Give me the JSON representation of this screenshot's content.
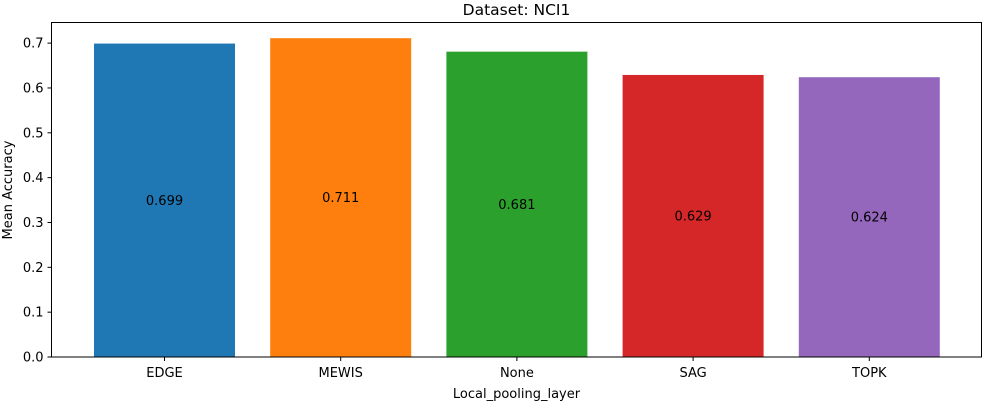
{
  "chart_data": {
    "type": "bar",
    "title": "Dataset: NCI1",
    "xlabel": "Local_pooling_layer",
    "ylabel": "Mean Accuracy",
    "categories": [
      "EDGE",
      "MEWIS",
      "None",
      "SAG",
      "TOPK"
    ],
    "values": [
      0.699,
      0.711,
      0.681,
      0.629,
      0.624
    ],
    "data_labels": [
      "0.699",
      "0.711",
      "0.681",
      "0.629",
      "0.624"
    ],
    "colors": [
      "#1f77b4",
      "#ff7f0e",
      "#2ca02c",
      "#d62728",
      "#9467bd"
    ],
    "ylim": [
      0,
      0.746
    ],
    "yticks": [
      0.0,
      0.1,
      0.2,
      0.3,
      0.4,
      0.5,
      0.6,
      0.7
    ],
    "ytick_labels": [
      "0.0",
      "0.1",
      "0.2",
      "0.3",
      "0.4",
      "0.5",
      "0.6",
      "0.7"
    ],
    "grid": false,
    "legend": "none"
  }
}
